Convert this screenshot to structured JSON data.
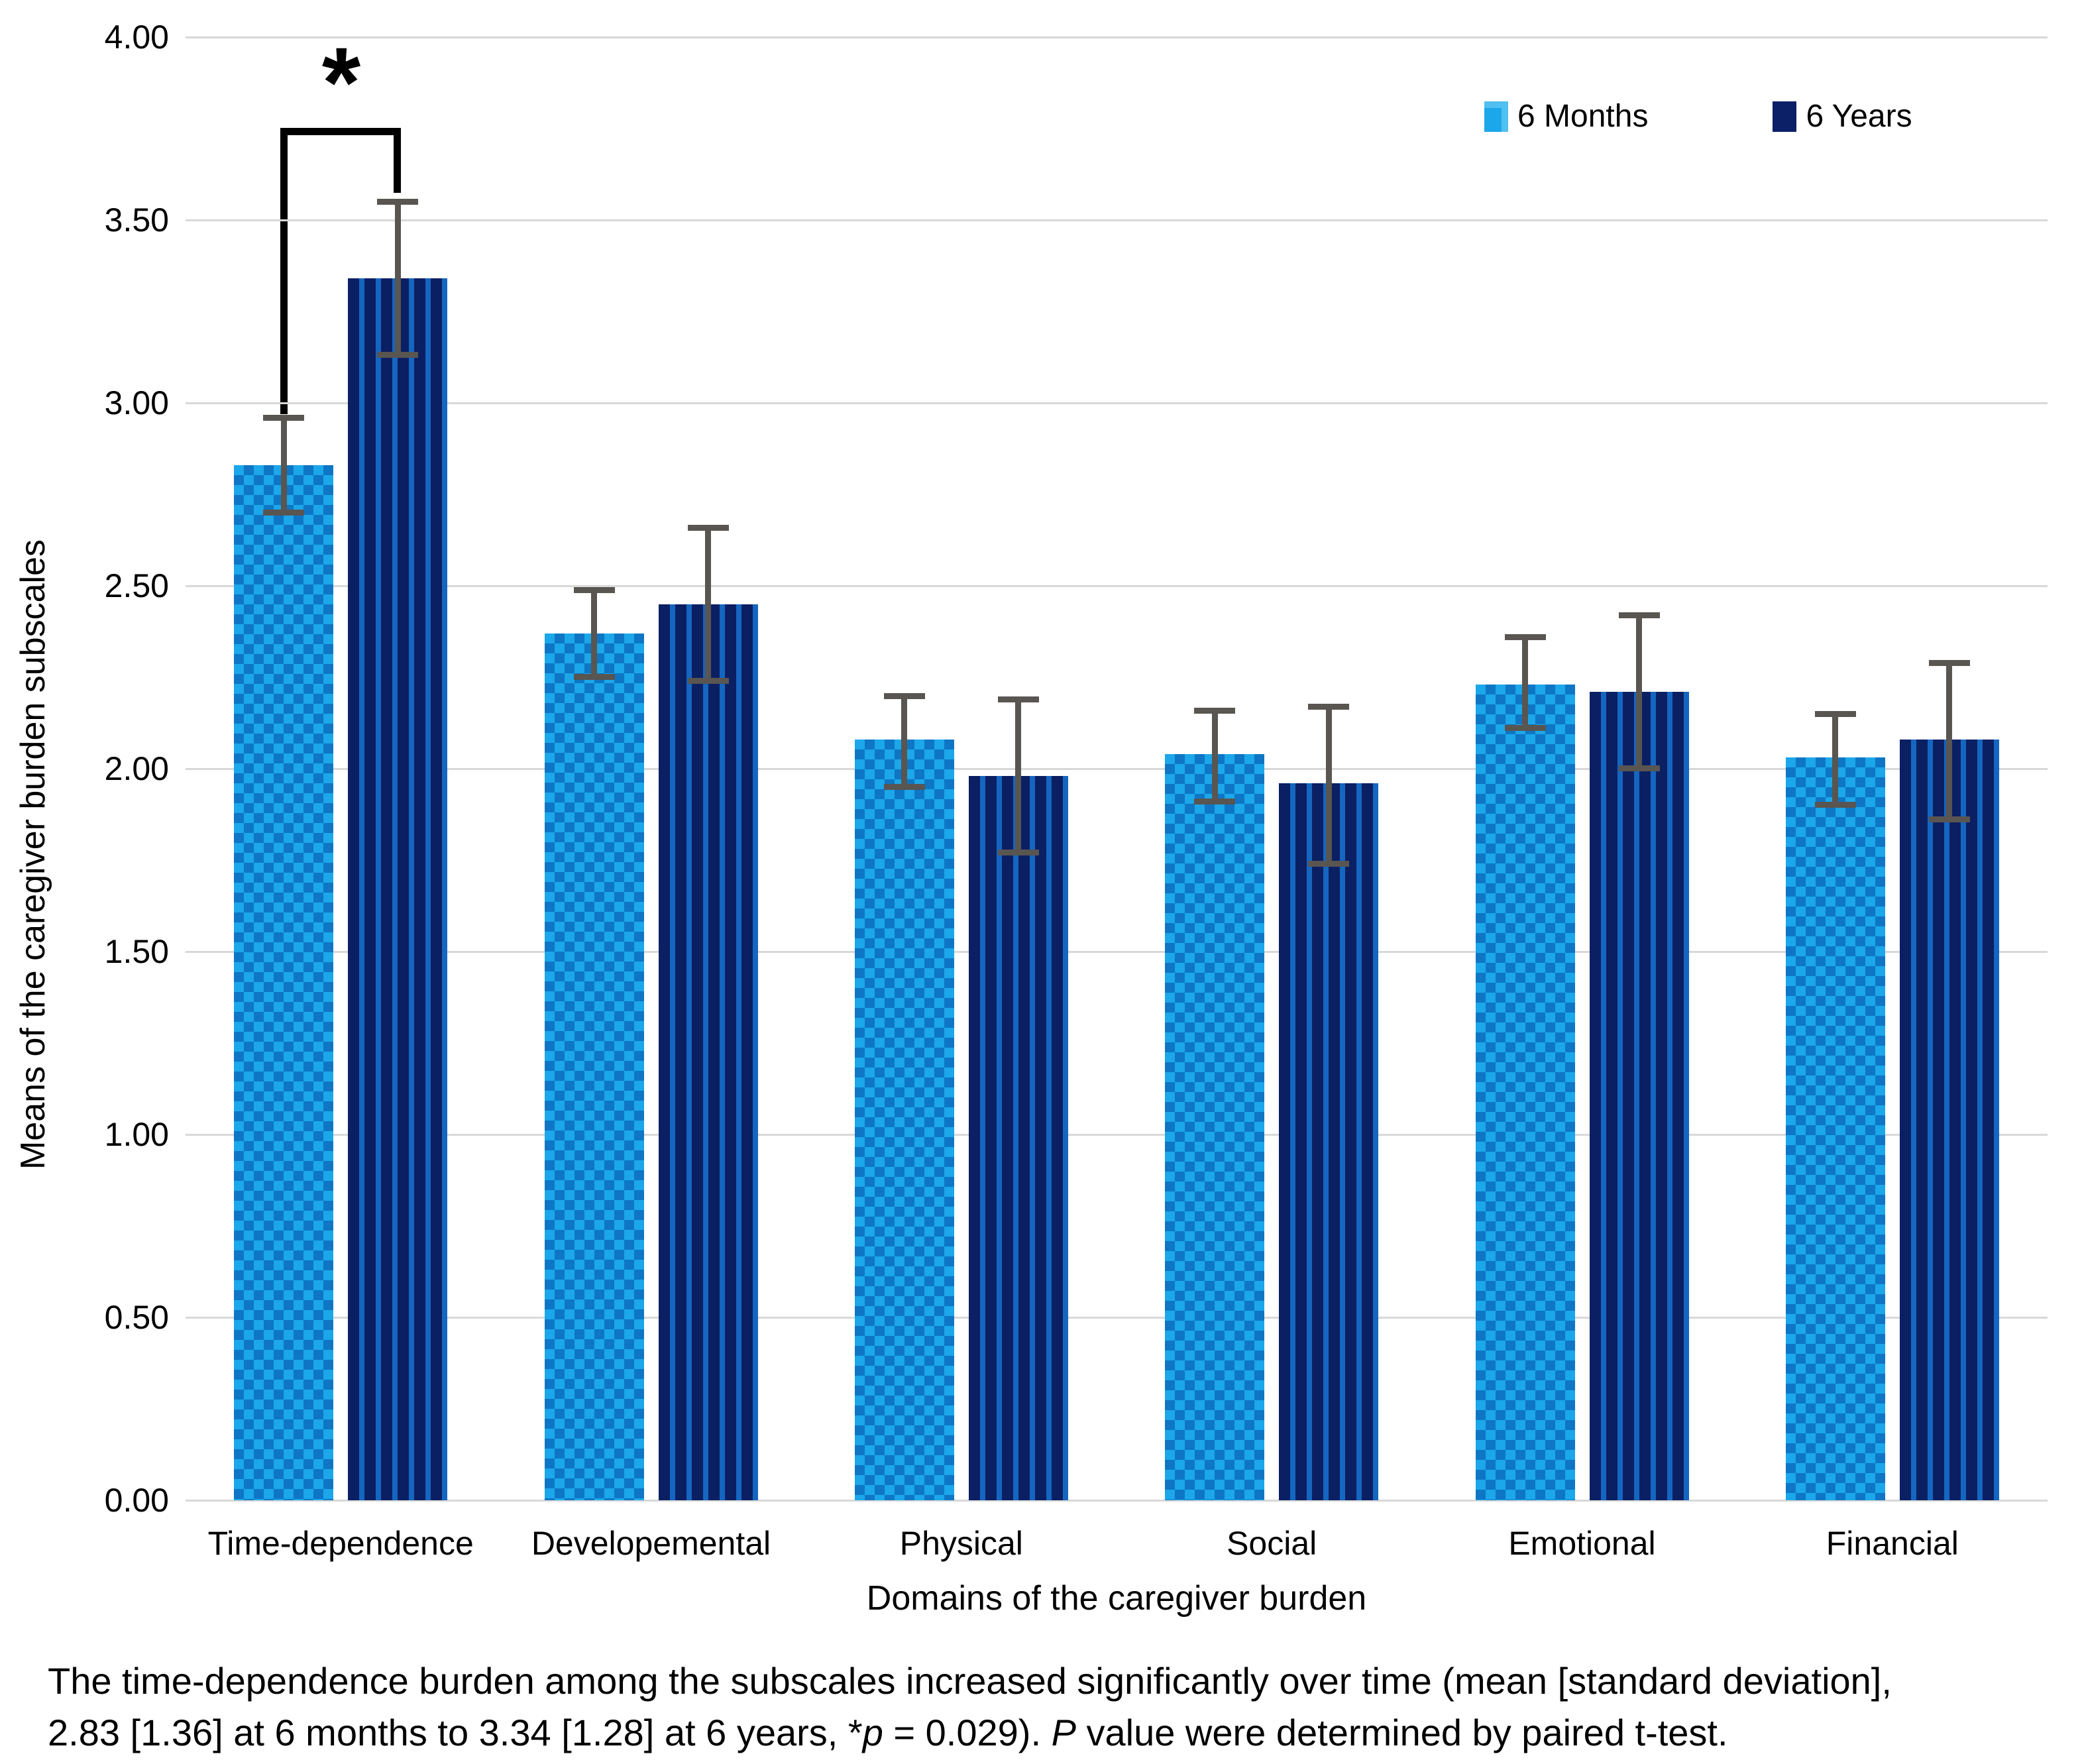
{
  "axes": {
    "y_title": "Means of the caregiver burden subscales",
    "x_title": "Domains of the caregiver burden",
    "y_ticks": [
      "4.00",
      "3.50",
      "3.00",
      "2.50",
      "2.00",
      "1.50",
      "1.00",
      "0.50",
      "0.00"
    ]
  },
  "legend": {
    "items": [
      {
        "label": "6 Months"
      },
      {
        "label": "6 Years"
      }
    ]
  },
  "significance": {
    "symbol": "*",
    "location": "Time-dependence group, between 6 Months and 6 Years bars"
  },
  "caption": {
    "line1": "The time-dependence burden among the subscales increased significantly over time (mean [standard deviation],",
    "line2_start": "2.83 [1.36] at 6 months to 3.34 [1.28] at 6 years, *",
    "p_italic": "p",
    "line2_mid": " = 0.029). ",
    "P_italic": "P",
    "line2_end": " value were determined by paired t-test."
  },
  "chart_data": {
    "type": "bar",
    "title": "",
    "categories": [
      "Time-dependence",
      "Developemental",
      "Physical",
      "Social",
      "Emotional",
      "Financial"
    ],
    "series": [
      {
        "name": "6 Months",
        "pattern": "checkerboard",
        "values": [
          2.83,
          2.37,
          2.08,
          2.04,
          2.23,
          2.03
        ],
        "err_low": [
          2.7,
          2.25,
          1.95,
          1.91,
          2.11,
          1.9
        ],
        "err_high": [
          2.96,
          2.49,
          2.2,
          2.16,
          2.36,
          2.15
        ]
      },
      {
        "name": "6 Years",
        "pattern": "vertical-stripes",
        "values": [
          3.34,
          2.45,
          1.98,
          1.96,
          2.21,
          2.08
        ],
        "err_low": [
          3.13,
          2.24,
          1.77,
          1.74,
          2.0,
          1.86
        ],
        "err_high": [
          3.55,
          2.66,
          2.19,
          2.17,
          2.42,
          2.29
        ]
      }
    ],
    "ylabel": "Means of the caregiver burden subscales",
    "xlabel": "Domains of the caregiver burden",
    "ylim": [
      0,
      4
    ],
    "ytick_step": 0.5,
    "grid": true,
    "legend_position": "top-right",
    "annotation": "* between 6 Months and 6 Years of Time-dependence, p = 0.029",
    "colors": {
      "months6_light": "#1BA7EA",
      "months6_check": "#0E76C5",
      "years6_navy": "#0B1F63",
      "years6_stripe": "#1566C0",
      "error_bar": "#595551",
      "gridline": "#D8D8D8",
      "bracket": "#000000"
    }
  }
}
